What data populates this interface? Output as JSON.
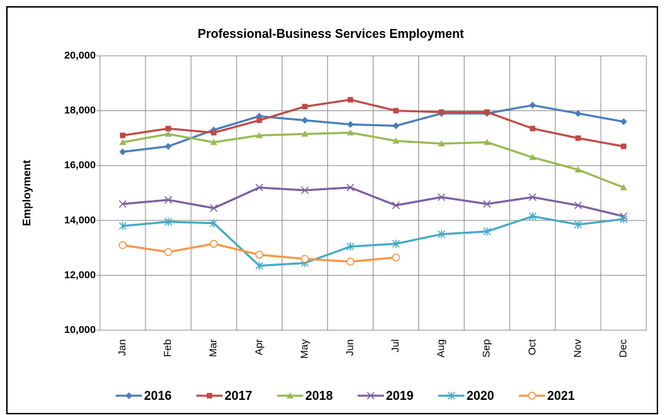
{
  "chart_data": {
    "type": "line",
    "title": "Professional-Business Services Employment",
    "y_label": "Employment",
    "categories": [
      "Jan",
      "Feb",
      "Mar",
      "Apr",
      "May",
      "Jun",
      "Jul",
      "Aug",
      "Sep",
      "Oct",
      "Nov",
      "Dec"
    ],
    "ylim": [
      10000,
      20000
    ],
    "yticks": [
      {
        "value": 10000,
        "label": "10,000"
      },
      {
        "value": 12000,
        "label": "12,000"
      },
      {
        "value": 14000,
        "label": "14,000"
      },
      {
        "value": 16000,
        "label": "16,000"
      },
      {
        "value": 18000,
        "label": "18,000"
      },
      {
        "value": 20000,
        "label": "20,000"
      }
    ],
    "grid": true,
    "legend": "bottom",
    "series": [
      {
        "name": "2016",
        "color": "#4a7ebb",
        "marker": "diamond",
        "values": [
          16500,
          16700,
          17300,
          17800,
          17650,
          17500,
          17450,
          17900,
          17900,
          18200,
          17900,
          17600
        ]
      },
      {
        "name": "2017",
        "color": "#be4b48",
        "marker": "square",
        "values": [
          17100,
          17350,
          17200,
          17650,
          18150,
          18400,
          18000,
          17950,
          17950,
          17350,
          17000,
          16700
        ]
      },
      {
        "name": "2018",
        "color": "#98b954",
        "marker": "triangle",
        "values": [
          16850,
          17150,
          16850,
          17100,
          17150,
          17200,
          16900,
          16800,
          16850,
          16300,
          15850,
          15200
        ]
      },
      {
        "name": "2019",
        "color": "#7d60a0",
        "marker": "x",
        "values": [
          14600,
          14750,
          14450,
          15200,
          15100,
          15200,
          14550,
          14850,
          14600,
          14850,
          14550,
          14150
        ]
      },
      {
        "name": "2020",
        "color": "#46aac5",
        "marker": "star",
        "values": [
          13800,
          13950,
          13900,
          12350,
          12450,
          13050,
          13150,
          13500,
          13600,
          14150,
          13850,
          14050
        ]
      },
      {
        "name": "2021",
        "color": "#f79646",
        "marker": "circle",
        "values": [
          13100,
          12850,
          13150,
          12750,
          12600,
          12500,
          12650,
          null,
          null,
          null,
          null,
          null
        ]
      }
    ]
  }
}
